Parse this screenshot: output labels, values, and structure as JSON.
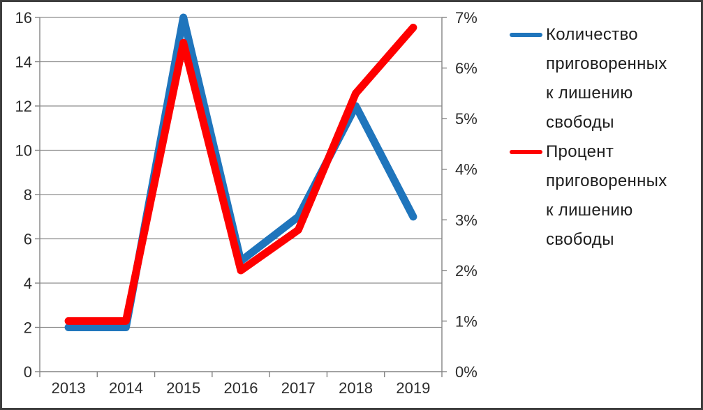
{
  "chart_data": {
    "type": "line",
    "title": "",
    "categories": [
      "2013",
      "2014",
      "2015",
      "2016",
      "2017",
      "2018",
      "2019"
    ],
    "series": [
      {
        "name": "Количество приговоренных к лишению свободы",
        "axis": "left",
        "color": "#1F75BC",
        "values": [
          2,
          2,
          16,
          5,
          7,
          12,
          7
        ]
      },
      {
        "name": "Процент приговоренных к лишению свободы",
        "axis": "right",
        "color": "#FE0000",
        "values": [
          1.0,
          1.0,
          6.5,
          2.0,
          2.8,
          5.5,
          6.8
        ]
      }
    ],
    "left_axis": {
      "min": 0,
      "max": 16,
      "step": 2,
      "tick_labels": [
        "0",
        "2",
        "4",
        "6",
        "8",
        "10",
        "12",
        "14",
        "16"
      ]
    },
    "right_axis": {
      "min": 0,
      "max": 7,
      "step": 1,
      "tick_labels": [
        "0%",
        "1%",
        "2%",
        "3%",
        "4%",
        "5%",
        "6%",
        "7%"
      ]
    },
    "grid": true,
    "legend_position": "right"
  },
  "colors": {
    "frame": "#3E3E3E",
    "axis": "#848484",
    "grid": "#8E8E8E",
    "tick_text": "#2B2B2B",
    "background": "#FFFFFF"
  }
}
